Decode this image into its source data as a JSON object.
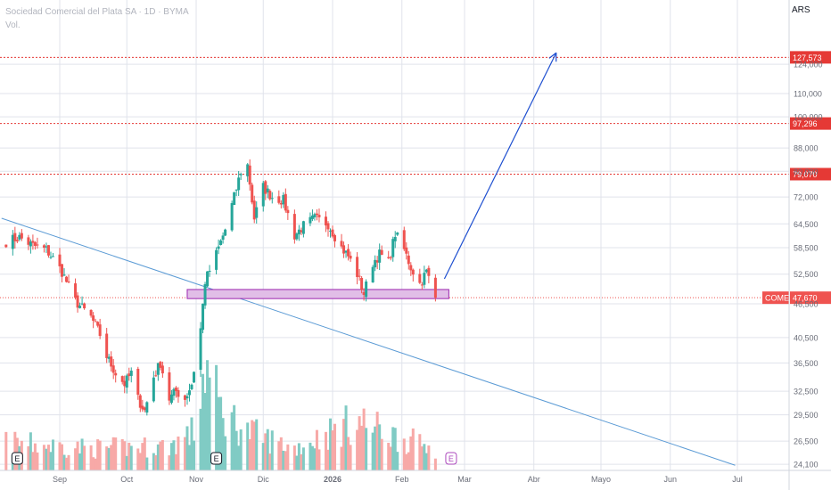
{
  "header": {
    "title": "Sociedad Comercial del Plata SA · 1D · BYMA",
    "volume_label": "Vol.",
    "currency": "ARS"
  },
  "colors": {
    "up": "#26a69a",
    "down": "#ef5350",
    "up_volume": "#80cbc4",
    "down_volume": "#f7a9a7",
    "level_line": "#e53935",
    "trendline": "#5b9bd5",
    "arrow": "#1e4fd0",
    "zone_fill": "#e1bee7",
    "zone_border": "#9c27b0",
    "grid": "#e0e3eb"
  },
  "chart_data": {
    "type": "candlestick",
    "scale": "log",
    "ylim": [
      23500,
      150000
    ],
    "y_ticks": [
      "24,100",
      "26,500",
      "29,500",
      "32,500",
      "36,500",
      "40,500",
      "46,500",
      "52,500",
      "58,500",
      "64,500",
      "72,000",
      "80,000",
      "88,000",
      "100,000",
      "110,000",
      "124,000"
    ],
    "y_tick_values": [
      24100,
      26500,
      29500,
      32500,
      36500,
      40500,
      46500,
      52500,
      58500,
      64500,
      72000,
      80000,
      88000,
      100000,
      110000,
      124000
    ],
    "x_labels": [
      "Sep",
      "Oct",
      "Nov",
      "Dic",
      "2026",
      "Feb",
      "Mar",
      "Abr",
      "Mayo",
      "Jun",
      "Jul"
    ],
    "x_label_dates": [
      "2025-09-01",
      "2025-10-01",
      "2025-11-01",
      "2025-12-01",
      "2026-01-01",
      "2026-02-01",
      "2026-03-01",
      "2026-04-01",
      "2026-05-01",
      "2026-06-01",
      "2026-07-01"
    ],
    "last_price": {
      "label": "COME",
      "value": "47,670",
      "price": 47670
    },
    "levels": [
      {
        "value": 127573,
        "label": "127,573"
      },
      {
        "value": 97296,
        "label": "97,296"
      },
      {
        "value": 79070,
        "label": "79,070"
      }
    ],
    "support_zone": {
      "low": 47500,
      "high": 49300,
      "start": "2025-10-28",
      "end": "2026-02-16"
    },
    "trendline": {
      "start": {
        "date": "2025-08-06",
        "price": 66000
      },
      "end": {
        "date": "2026-06-30",
        "price": 24000
      }
    },
    "projection_arrow": {
      "start": {
        "date": "2026-02-20",
        "price": 51500
      },
      "end": {
        "date": "2026-04-11",
        "price": 130000
      }
    },
    "earnings_markers": [
      {
        "date": "2025-08-13",
        "label": "E",
        "future": false
      },
      {
        "date": "2025-11-10",
        "label": "E",
        "future": false
      },
      {
        "date": "2026-02-23",
        "label": "E",
        "future": true
      }
    ],
    "anchor_prices": [
      [
        "2025-08-08",
        60000
      ],
      [
        "2025-08-14",
        61000
      ],
      [
        "2025-08-20",
        59000
      ],
      [
        "2025-08-26",
        58000
      ],
      [
        "2025-08-29",
        56000
      ],
      [
        "2025-09-02",
        53000
      ],
      [
        "2025-09-08",
        47000
      ],
      [
        "2025-09-15",
        44000
      ],
      [
        "2025-09-19",
        41000
      ],
      [
        "2025-09-22",
        37500
      ],
      [
        "2025-09-26",
        35000
      ],
      [
        "2025-09-30",
        33500
      ],
      [
        "2025-10-03",
        35000
      ],
      [
        "2025-10-06",
        31500
      ],
      [
        "2025-10-09",
        30000
      ],
      [
        "2025-10-13",
        34500
      ],
      [
        "2025-10-16",
        36500
      ],
      [
        "2025-10-20",
        31500
      ],
      [
        "2025-10-23",
        32500
      ],
      [
        "2025-10-27",
        31500
      ],
      [
        "2025-10-30",
        33500
      ],
      [
        "2025-11-03",
        42000
      ],
      [
        "2025-11-05",
        51000
      ],
      [
        "2025-11-10",
        57000
      ],
      [
        "2025-11-14",
        63000
      ],
      [
        "2025-11-18",
        72000
      ],
      [
        "2025-11-21",
        80000
      ],
      [
        "2025-11-24",
        82000
      ],
      [
        "2025-11-27",
        66000
      ],
      [
        "2025-12-01",
        75000
      ],
      [
        "2025-12-05",
        72000
      ],
      [
        "2025-12-10",
        71000
      ],
      [
        "2025-12-15",
        61500
      ],
      [
        "2025-12-19",
        64000
      ],
      [
        "2025-12-24",
        66000
      ],
      [
        "2025-12-30",
        64500
      ],
      [
        "2026-01-05",
        58500
      ],
      [
        "2026-01-08",
        56500
      ],
      [
        "2026-01-12",
        52500
      ],
      [
        "2026-01-15",
        48500
      ],
      [
        "2026-01-19",
        55000
      ],
      [
        "2026-01-22",
        57000
      ],
      [
        "2026-01-26",
        55000
      ],
      [
        "2026-01-29",
        62000
      ],
      [
        "2026-02-02",
        58000
      ],
      [
        "2026-02-05",
        54000
      ],
      [
        "2026-02-09",
        50500
      ],
      [
        "2026-02-12",
        53000
      ],
      [
        "2026-02-16",
        47670
      ]
    ],
    "volume_shape": [
      [
        "2025-08-08",
        0.25
      ],
      [
        "2025-09-15",
        0.2
      ],
      [
        "2025-10-20",
        0.22
      ],
      [
        "2025-10-31",
        0.35
      ],
      [
        "2025-11-05",
        0.95
      ],
      [
        "2025-11-12",
        0.55
      ],
      [
        "2025-11-24",
        0.35
      ],
      [
        "2025-12-15",
        0.2
      ],
      [
        "2026-01-12",
        0.45
      ],
      [
        "2026-01-30",
        0.3
      ],
      [
        "2026-02-16",
        0.2
      ]
    ]
  }
}
